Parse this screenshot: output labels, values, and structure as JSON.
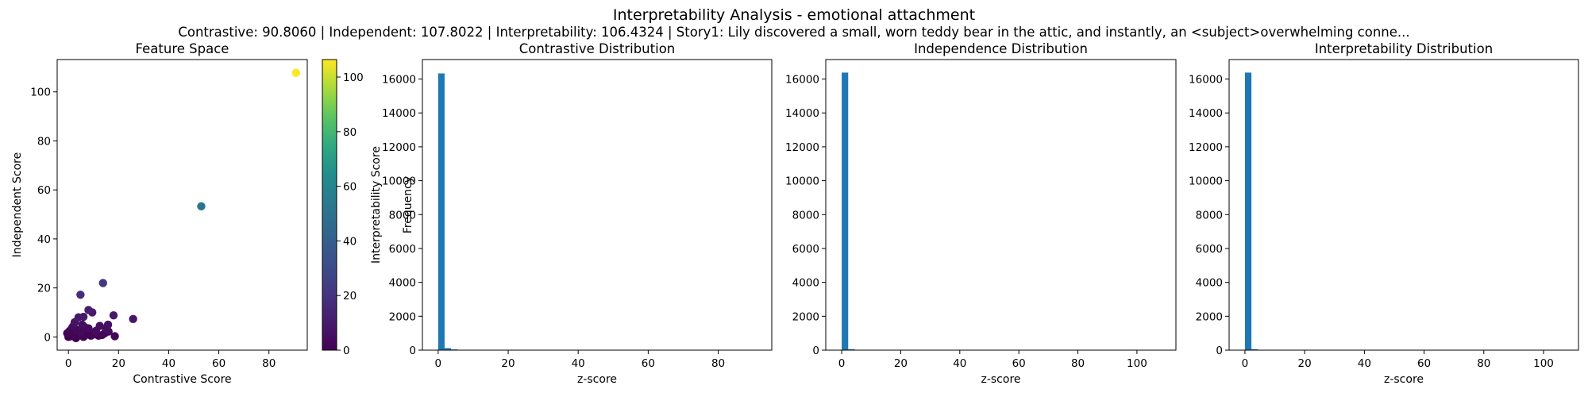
{
  "suptitle": "Interpretability Analysis - emotional attachment",
  "subtitle": "Contrastive: 90.8060 | Independent: 107.8022 | Interpretability: 106.4324 | Story1: Lily discovered a small, worn teddy bear in the attic, and instantly, an <subject>overwhelming conne...",
  "colors": {
    "bar": "#1f77b4",
    "axis": "#000000",
    "background": "#ffffff"
  },
  "chart_data": [
    {
      "type": "scatter",
      "title": "Feature Space",
      "xlabel": "Contrastive Score",
      "ylabel": "Independent Score",
      "xlim": [
        -4.5,
        95.3
      ],
      "ylim": [
        -5.4,
        113.2
      ],
      "xticks": [
        0,
        20,
        40,
        60,
        80
      ],
      "yticks": [
        0,
        20,
        40,
        60,
        80,
        100
      ],
      "grid": false,
      "colormap": "viridis",
      "colorbar": {
        "label": "Interpretability Score",
        "range": [
          0,
          106.4
        ],
        "ticks": [
          0,
          20,
          40,
          60,
          80,
          100
        ]
      },
      "points": [
        {
          "x": 90.8,
          "y": 107.8,
          "c": 106.4
        },
        {
          "x": 53.0,
          "y": 53.3,
          "c": 52.0
        },
        {
          "x": 13.8,
          "y": 22.0,
          "c": 21.0
        },
        {
          "x": 4.8,
          "y": 17.2,
          "c": 17.0
        },
        {
          "x": 8.0,
          "y": 11.0,
          "c": 11.0
        },
        {
          "x": 9.5,
          "y": 10.0,
          "c": 10.0
        },
        {
          "x": 18.0,
          "y": 8.8,
          "c": 9.0
        },
        {
          "x": 4.0,
          "y": 8.0,
          "c": 9.0
        },
        {
          "x": 6.0,
          "y": 8.2,
          "c": 9.0
        },
        {
          "x": 25.8,
          "y": 7.3,
          "c": 8.0
        },
        {
          "x": 2.5,
          "y": 6.0,
          "c": 7.0
        },
        {
          "x": 15.8,
          "y": 5.0,
          "c": 6.0
        },
        {
          "x": 15.0,
          "y": 3.5,
          "c": 5.0
        },
        {
          "x": 12.5,
          "y": 4.5,
          "c": 5.0
        },
        {
          "x": 11.0,
          "y": 2.5,
          "c": 4.0
        },
        {
          "x": 8.0,
          "y": 3.5,
          "c": 4.0
        },
        {
          "x": 6.5,
          "y": 4.0,
          "c": 4.0
        },
        {
          "x": 5.0,
          "y": 2.0,
          "c": 3.0
        },
        {
          "x": 3.0,
          "y": 3.0,
          "c": 3.0
        },
        {
          "x": 1.5,
          "y": 3.8,
          "c": 3.0
        },
        {
          "x": 0.5,
          "y": 2.5,
          "c": 2.0
        },
        {
          "x": 10.0,
          "y": 1.0,
          "c": 2.0
        },
        {
          "x": 13.5,
          "y": 0.8,
          "c": 2.0
        },
        {
          "x": 14.5,
          "y": 1.5,
          "c": 2.0
        },
        {
          "x": 16.0,
          "y": 2.2,
          "c": 3.0
        },
        {
          "x": 18.5,
          "y": 0.3,
          "c": 2.0
        },
        {
          "x": 7.0,
          "y": 0.8,
          "c": 1.0
        },
        {
          "x": 4.0,
          "y": 0.5,
          "c": 1.0
        },
        {
          "x": 2.0,
          "y": 1.0,
          "c": 1.0
        },
        {
          "x": 0.0,
          "y": 0.0,
          "c": 0.0
        },
        {
          "x": 1.0,
          "y": 0.3,
          "c": 0.0
        },
        {
          "x": -0.5,
          "y": 1.5,
          "c": 1.0
        },
        {
          "x": 3.0,
          "y": -0.5,
          "c": 0.0
        },
        {
          "x": 6.0,
          "y": 0.0,
          "c": 0.0
        },
        {
          "x": 9.0,
          "y": 0.5,
          "c": 1.0
        },
        {
          "x": 12.0,
          "y": 0.5,
          "c": 1.0
        },
        {
          "x": 5.5,
          "y": 5.0,
          "c": 5.0
        },
        {
          "x": 2.0,
          "y": 4.5,
          "c": 4.0
        }
      ]
    },
    {
      "type": "bar",
      "subtype": "histogram",
      "title": "Contrastive Distribution",
      "xlabel": "z-score",
      "ylabel": "Frequency",
      "xlim": [
        -4.5,
        95.3
      ],
      "ylim": [
        0,
        17150
      ],
      "xticks": [
        0,
        20,
        40,
        60,
        80
      ],
      "yticks": [
        0,
        2000,
        4000,
        6000,
        8000,
        10000,
        12000,
        14000,
        16000
      ],
      "bin_width": 1.84,
      "bins": [
        {
          "start": 0.0,
          "count": 16330
        },
        {
          "start": 1.84,
          "count": 120
        },
        {
          "start": 3.68,
          "count": 45
        },
        {
          "start": 5.52,
          "count": 15
        }
      ]
    },
    {
      "type": "bar",
      "subtype": "histogram",
      "title": "Independence Distribution",
      "xlabel": "z-score",
      "ylabel": "",
      "xlim": [
        -5.4,
        113.2
      ],
      "ylim": [
        0,
        17150
      ],
      "xticks": [
        0,
        20,
        40,
        60,
        80,
        100
      ],
      "yticks": [
        0,
        2000,
        4000,
        6000,
        8000,
        10000,
        12000,
        14000,
        16000
      ],
      "bin_width": 2.2,
      "bins": [
        {
          "start": 0.0,
          "count": 16380
        },
        {
          "start": 2.2,
          "count": 60
        },
        {
          "start": 4.4,
          "count": 15
        }
      ]
    },
    {
      "type": "bar",
      "subtype": "histogram",
      "title": "Interpretability Distribution",
      "xlabel": "z-score",
      "ylabel": "",
      "xlim": [
        -5.3,
        111.7
      ],
      "ylim": [
        0,
        17150
      ],
      "xticks": [
        0,
        20,
        40,
        60,
        80,
        100
      ],
      "yticks": [
        0,
        2000,
        4000,
        6000,
        8000,
        10000,
        12000,
        14000,
        16000
      ],
      "bin_width": 2.17,
      "bins": [
        {
          "start": 0.0,
          "count": 16380
        },
        {
          "start": 2.17,
          "count": 60
        },
        {
          "start": 4.34,
          "count": 12
        }
      ]
    }
  ]
}
